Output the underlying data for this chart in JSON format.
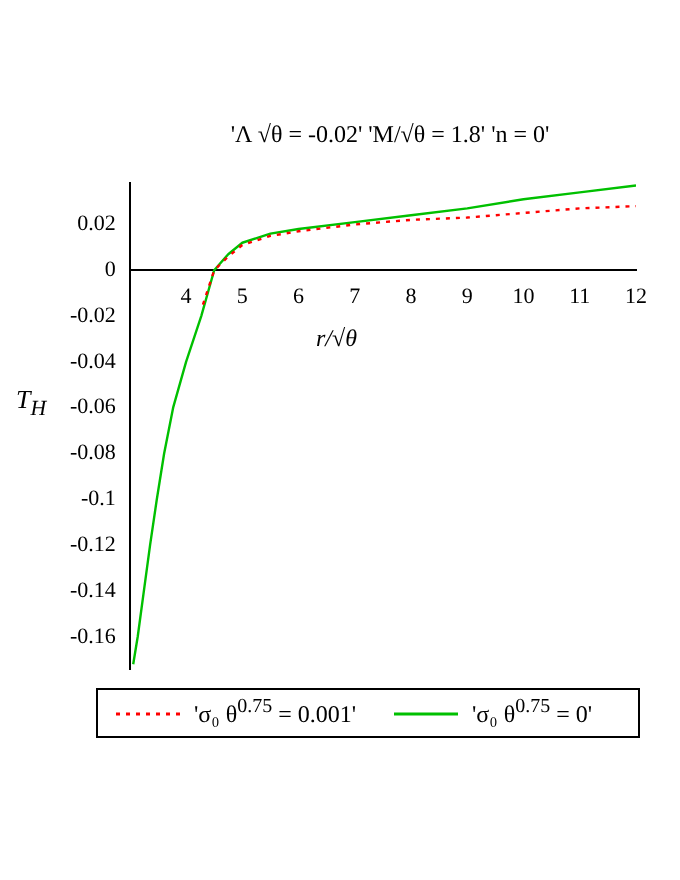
{
  "chart_data": {
    "type": "line",
    "title": "'Λ √θ = -0.02' 'M/√θ = 1.8' 'n = 0'",
    "xlabel": "r/√θ",
    "ylabel": "T$_{H}$",
    "xlim": [
      3,
      12
    ],
    "xticks": [
      4,
      5,
      6,
      7,
      8,
      9,
      10,
      11,
      12
    ],
    "ylim": [
      -0.174,
      0.038
    ],
    "yticks": [
      -0.16,
      -0.14,
      -0.12,
      -0.1,
      -0.08,
      -0.06,
      -0.04,
      -0.02,
      0,
      0.02
    ],
    "grid": false,
    "legend": "bottom",
    "marker": "none",
    "series": [
      {
        "name": "'σ₀ θ$^{0.75}$ = 0.001'",
        "color": "#ff0000",
        "line_style": "dotted",
        "x": [
          4.3,
          4.5,
          4.75,
          5,
          5.5,
          6,
          7,
          8,
          9,
          10,
          11,
          12
        ],
        "values": [
          -0.015,
          0,
          0.006,
          0.011,
          0.015,
          0.017,
          0.02,
          0.022,
          0.023,
          0.025,
          0.027,
          0.028
        ]
      },
      {
        "name": "'σ₀ θ$^{0.75}$ = 0'",
        "color": "#00c000",
        "line_style": "solid",
        "x": [
          3.06,
          3.14,
          3.25,
          3.36,
          3.48,
          3.61,
          3.77,
          4,
          4.27,
          4.5,
          4.75,
          5,
          5.5,
          6,
          7,
          8,
          9,
          10,
          11,
          12
        ],
        "values": [
          -0.172,
          -0.16,
          -0.14,
          -0.12,
          -0.1,
          -0.08,
          -0.06,
          -0.04,
          -0.02,
          0,
          0.007,
          0.012,
          0.016,
          0.018,
          0.021,
          0.024,
          0.027,
          0.031,
          0.034,
          0.037
        ]
      }
    ]
  }
}
